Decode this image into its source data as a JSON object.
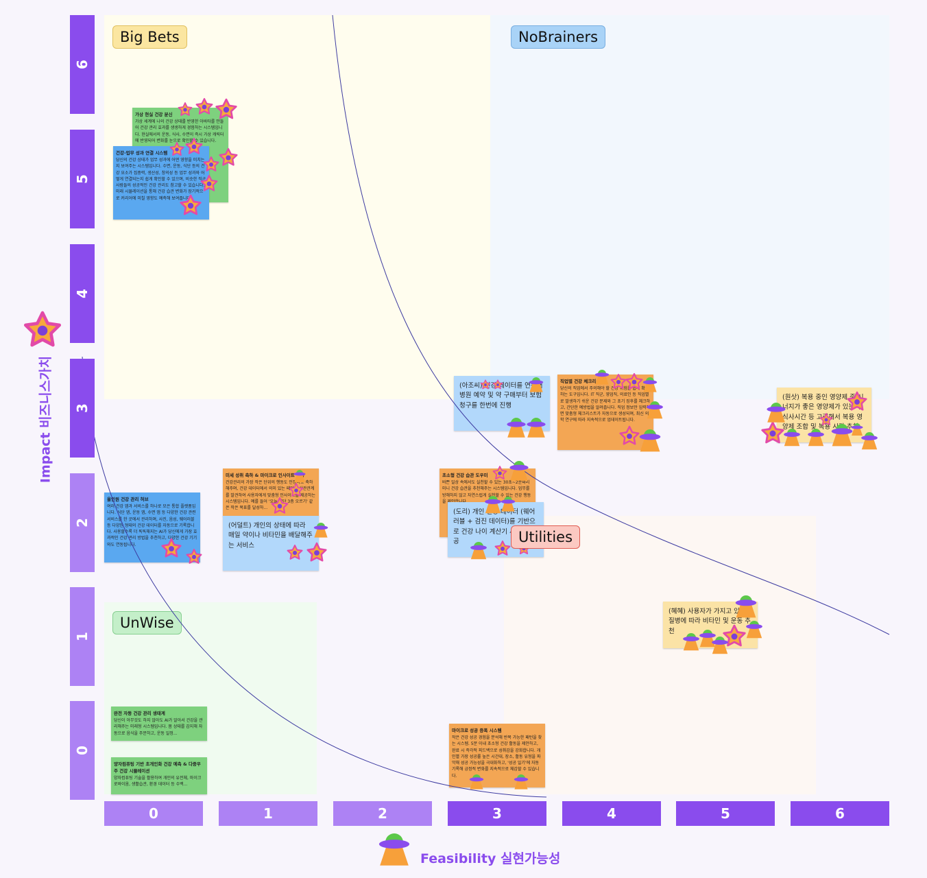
{
  "y_axis": {
    "label": "Impact 비즈니스가치",
    "ticks": [
      "6",
      "5",
      "4",
      "3",
      "2",
      "1",
      "0"
    ]
  },
  "x_axis": {
    "label": "Feasibility 실현가능성",
    "ticks": [
      "0",
      "1",
      "2",
      "3",
      "4",
      "5",
      "6"
    ]
  },
  "quadrants": [
    "Big Bets",
    "NoBrainers",
    "UnWise",
    "Utilities"
  ],
  "notes": [
    {
      "title": "가상 현실 건강 분신",
      "body": "가상 세계에 나의 건강 상태를 반영한 아바타를 만들어 건강 관리 효과를 생생하게 경험하는 시스템입니다. 현실에서의 운동, 식사, 수면이 즉시 가상 캐릭터에 반영되어 변화를 눈으로 확인할 수 있습니다."
    },
    {
      "title": "건강-업무 성과 연결 시스템",
      "body": "당신의 건강 상태가 업무 성과에 어떤 영향을 미치는지 보여주는 시스템입니다. 수면, 운동, 식단 등의 건강 요소가 집중력, 생산성, 창의성 등 업무 성과와 어떻게 연결되는지 쉽게 확인할 수 있으며, 비슷한 직군 사람들의 성공적인 건강 관리도 참고할 수 있습니다. 미래 시뮬레이션을 통해 건강 습관 변화가 장기적으로 커리어에 미칠 영향도 예측해 보여줍니다."
    },
    {
      "title": "올인원 건강 관리 허브",
      "body": "여러 건강 앱과 서비스를 하나로 모은 통합 플랫폼입니다. 식단 앱, 운동 앱, 수면 앱 등 다양한 건강 관련 서비스를 한 곳에서 관리하며, 사진, 음성, 웨어러블 등 다양한 형태의 건강 데이터를 자동으로 기록합니다. 사용할수록 더 똑똑해지는 AI가 당신에게 가장 효과적인 건강 관리 방법을 추천하고, 다양한 건강 기기와도 연동됩니다."
    },
    {
      "title": "미세 성취 축하 & 마이크로 인사이트 제공",
      "body": "건강관리의 가장 작은 단위의 행동도 인정하고 축하해주며, 건강 데이터에서 의미 있는 패턴과 상관관계를 발견하여 사용자에게 맞춤형 인사이트를 제공하는 시스템입니다. 예를 들어 '오늘 계단 3층 오르기' 같은 작은 목표를 달성하..."
    },
    {
      "text": "(어덜트) 개인의 상태에 따라 매일 약이나 비타민을 배달해주는 서비스"
    },
    {
      "text": "(아조씨) 건강 데이터를 연동해 병원 예약 및 약 구매부터 보험 청구를 한번에 진행"
    },
    {
      "title": "직업별 건강 체크리스트",
      "body": "당신의 직업에서 주의해야 할 건강 위험을 쉽게 확인하는 도구입니다. IT 직군, 영업직, 의료인 등 직업별로 발생하기 쉬운 건강 문제와 그 초기 징후를 체크하고, 간단한 예방법을 알려줍니다. 직업 정보만 입력하면 맞춤형 체크리스트가 자동으로 생성되며, 최신 의학 연구에 따라 지속적으로 업데이트됩니다."
    },
    {
      "text": "(원삿) 복용 중인 영양제 중 시너지가 좋은 영양제가 있는지 식사시간 등 고려해서 복용 영양제 조합 및 복용 시간 추천"
    },
    {
      "title": "초소형 건강 습관 도우미",
      "body": "바쁜 일상 속에서도 실천할 수 있는 30초~2분짜리 미니 건강 습관을 추천해주는 시스템입니다. 업무를 방해하지 않고 자연스럽게 실천할 수 있는 건강 행동을 제안합니다."
    },
    {
      "text": "(도리) 개인 건강 데이터 (웨어러블 + 검진 데이터)를 기반으로 건강 나이 계산기 서비스 제공"
    },
    {
      "text": "(혜혜) 사용자가 가지고 있는 질병에 따라 비타민 및 운동 추천"
    },
    {
      "title": "완전 자동 건강 관리 생태계",
      "body": "당신이 아무것도 하지 않아도 AI가 알아서 건강을 관리해주는 미래형 시스템입니다. 몸 상태를 감지해 자동으로 음식을 주문하고, 운동 일정..."
    },
    {
      "title": "양자컴퓨팅 기반 초개인화 건강 예측 & 다중우주 건강 시뮬레이션",
      "body": "양자컴퓨팅 기술을 활용하여 개인의 유전체, 마이크로바이옴, 생활습관, 환경 데이터 등 수백..."
    },
    {
      "title": "마이크로 성공 증폭 시스템",
      "body": "작은 건강 성공 경험을 분석해 반복 가능한 패턴을 찾는 시스템. 5분 이내 초소형 건강 활동을 제안하고, 완료 시 즉각적 피드백으로 성취감을 강화합니다. 개인별 가장 성공률 높은 시간대, 장소, 활동 유형을 파악해 성공 가능성을 극대화하고, '성공 일기'에 자동 기록해 긍정적 변화를 지속적으로 체감할 수 있습니다."
    }
  ]
}
